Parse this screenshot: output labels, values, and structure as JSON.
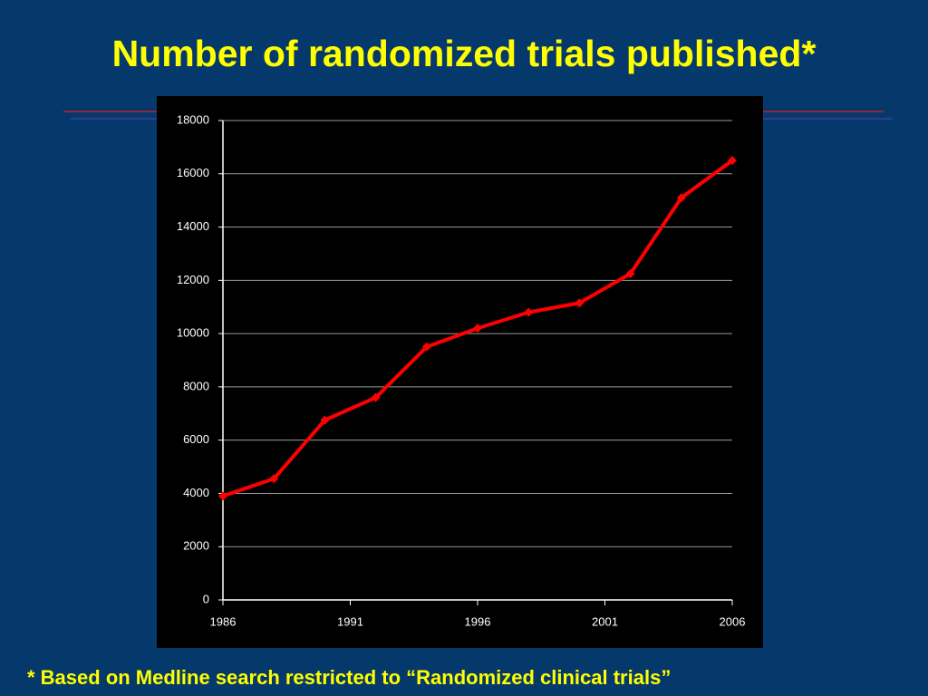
{
  "chart_data": {
    "type": "line",
    "title": "Number of randomized trials published*",
    "note": "* Based on Medline search restricted to “Randomized clinical trials”",
    "x": [
      1986,
      1988,
      1990,
      1992,
      1994,
      1996,
      1998,
      2000,
      2002,
      2004,
      2006
    ],
    "values": [
      3900,
      4550,
      6750,
      7600,
      9500,
      10200,
      10800,
      11150,
      12250,
      15100,
      16500
    ],
    "color": "#ff0000",
    "xlim": [
      1986,
      2006
    ],
    "xticks": [
      1986,
      1991,
      1996,
      2001,
      2006
    ],
    "ylim": [
      0,
      18000
    ],
    "yticks": [
      0,
      2000,
      4000,
      6000,
      8000,
      10000,
      12000,
      14000,
      16000,
      18000
    ],
    "grid": true
  }
}
